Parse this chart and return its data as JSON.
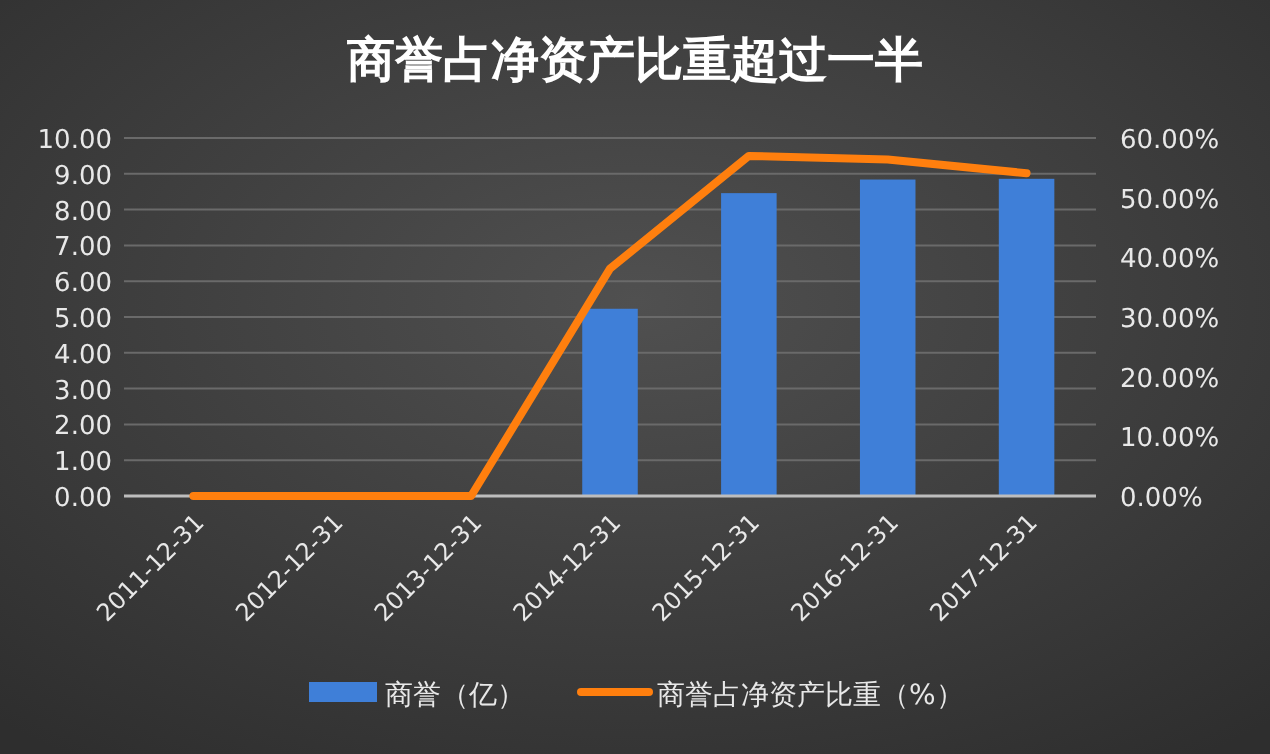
{
  "chart_data": {
    "type": "bar",
    "title": "商誉占净资产比重超过一半",
    "categories": [
      "2011-12-31",
      "2012-12-31",
      "2013-12-31",
      "2014-12-31",
      "2015-12-31",
      "2016-12-31",
      "2017-12-31"
    ],
    "series": [
      {
        "name": "商誉（亿）",
        "color": "#3f7fd8",
        "values": [
          0,
          0,
          0,
          5.23,
          8.46,
          8.84,
          8.86
        ]
      },
      {
        "name": "商誉占净资产比重（%）",
        "type": "line",
        "axis": "y2",
        "color": "#ff7f0e",
        "values": [
          0,
          0,
          0,
          38.1,
          57.0,
          56.4,
          54.1
        ]
      }
    ],
    "ylim": [
      0,
      10
    ],
    "yticks": [
      {
        "value": 0,
        "label": "0.00"
      },
      {
        "value": 1,
        "label": "1.00"
      },
      {
        "value": 2,
        "label": "2.00"
      },
      {
        "value": 3,
        "label": "3.00"
      },
      {
        "value": 4,
        "label": "4.00"
      },
      {
        "value": 5,
        "label": "5.00"
      },
      {
        "value": 6,
        "label": "6.00"
      },
      {
        "value": 7,
        "label": "7.00"
      },
      {
        "value": 8,
        "label": "8.00"
      },
      {
        "value": 9,
        "label": "9.00"
      },
      {
        "value": 10,
        "label": "10.00"
      }
    ],
    "y2lim": [
      0,
      60
    ],
    "y2ticks": [
      {
        "value": 0,
        "label": "0.00%"
      },
      {
        "value": 10,
        "label": "10.00%"
      },
      {
        "value": 20,
        "label": "20.00%"
      },
      {
        "value": 30,
        "label": "30.00%"
      },
      {
        "value": 40,
        "label": "40.00%"
      },
      {
        "value": 50,
        "label": "50.00%"
      },
      {
        "value": 60,
        "label": "60.00%"
      }
    ],
    "grid": "y",
    "legend": "bottom",
    "marker": "none",
    "line_style": "solid"
  }
}
